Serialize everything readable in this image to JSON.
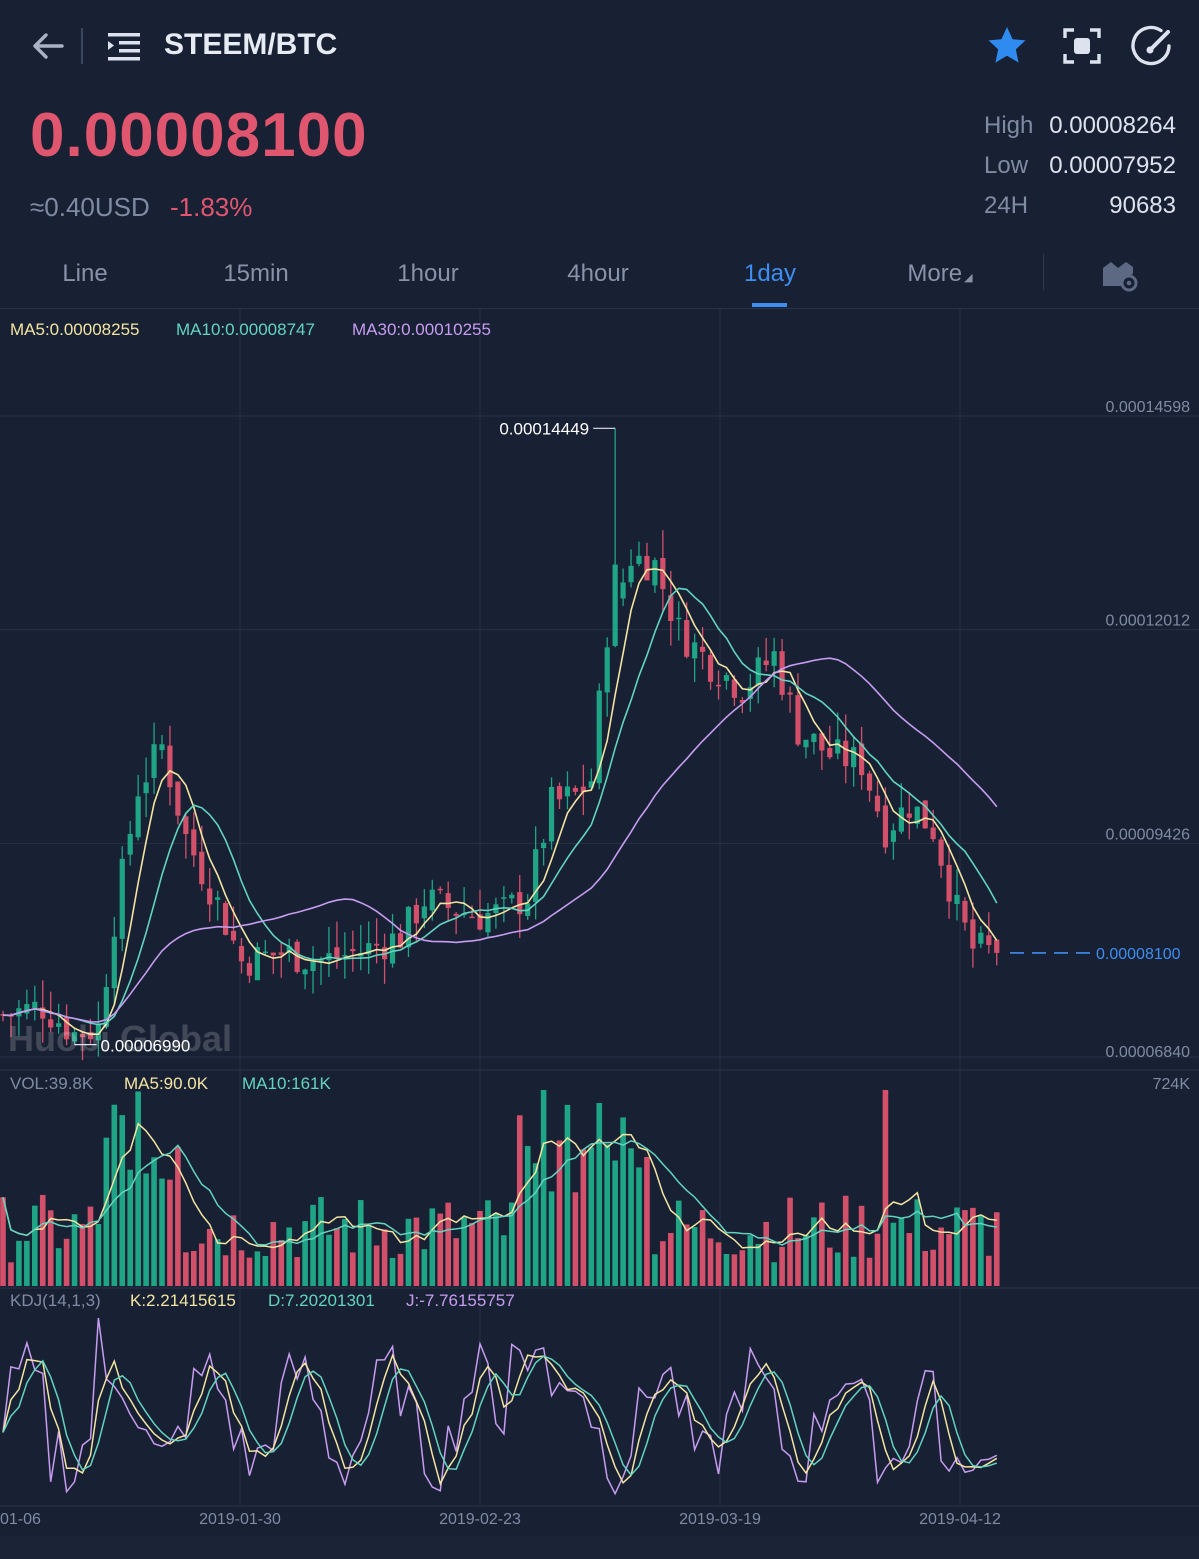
{
  "header": {
    "pair": "STEEM/BTC",
    "back_icon": "arrow-left-icon",
    "menu_icon": "menu-list-icon",
    "actions": [
      {
        "icon": "star-icon",
        "color": "#2f8bf0"
      },
      {
        "icon": "screenshot-icon"
      },
      {
        "icon": "gauge-icon"
      }
    ]
  },
  "ticker": {
    "last_price": "0.00008100",
    "usd_equiv": "≈0.40USD",
    "change": "-1.83%",
    "high_label": "High",
    "high_value": "0.00008264",
    "low_label": "Low",
    "low_value": "0.00007952",
    "vol_label": "24H",
    "vol_value": "90683"
  },
  "intervals": {
    "tabs": [
      "Line",
      "15min",
      "1hour",
      "4hour",
      "1day",
      "More"
    ],
    "active": "1day",
    "settings_icon": "chart-settings-icon"
  },
  "colors": {
    "up": "#1fa486",
    "down": "#d2506a",
    "ma5": "#f3e4a1",
    "ma10": "#62d4be",
    "ma30": "#c79cf0",
    "kdj_j": "#c79cf0",
    "accent": "#3d8ef0",
    "background": "#182134"
  },
  "chart_data": [
    {
      "type": "candlestick",
      "interval": "1day",
      "legend": [
        {
          "text": "MA5:0.00008255",
          "color": "#f3e4a1"
        },
        {
          "text": "MA10:0.00008747",
          "color": "#62d4be"
        },
        {
          "text": "MA30:0.00010255",
          "color": "#c79cf0"
        }
      ],
      "y_ticks": [
        "0.00014598",
        "0.00012012",
        "0.00009426",
        "0.00006840"
      ],
      "y_range": [
        6.84e-05,
        0.00014598
      ],
      "last_price_label": "0.00008100",
      "max_label": "0.00014449",
      "min_label": "0.00006990",
      "x_ticks": [
        "01-06",
        "2019-01-30",
        "2019-02-23",
        "2019-03-19",
        "2019-04-12"
      ],
      "watermark": "Huobi Global"
    },
    {
      "type": "bar",
      "title": "VOL",
      "legend": [
        {
          "text": "VOL:39.8K",
          "color": "#7f8aa3"
        },
        {
          "text": "MA5:90.0K",
          "color": "#f3e4a1"
        },
        {
          "text": "MA10:161K",
          "color": "#62d4be"
        }
      ],
      "y_max_label": "724K"
    },
    {
      "type": "line",
      "title": "KDJ(14,1,3)",
      "legend": [
        {
          "text": "KDJ(14,1,3)",
          "color": "#7f8aa3"
        },
        {
          "text": "K:2.21415615",
          "color": "#f3e4a1"
        },
        {
          "text": "D:7.20201301",
          "color": "#62d4be"
        },
        {
          "text": "J:-7.76155757",
          "color": "#c79cf0"
        }
      ]
    }
  ]
}
